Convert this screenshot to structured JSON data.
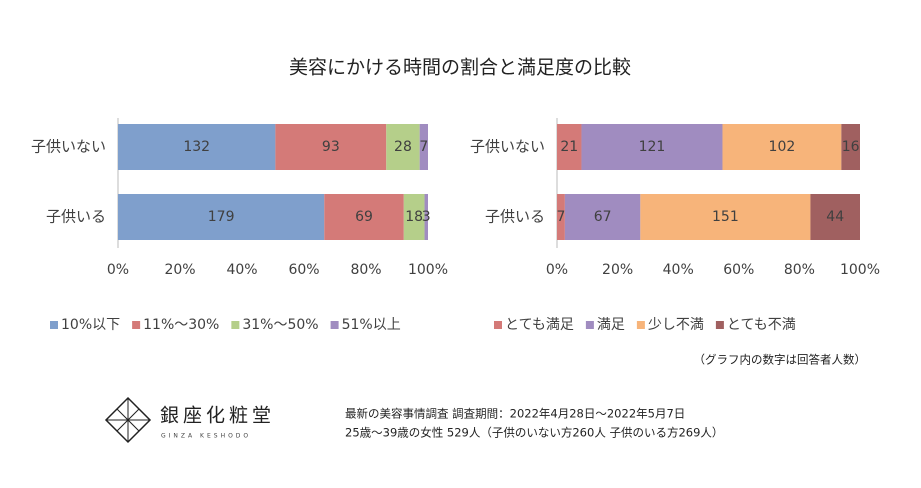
{
  "title": "美容にかける時間の割合と満足度の比較",
  "chart_data": [
    {
      "type": "bar",
      "orientation": "horizontal",
      "stacking": "percent",
      "categories": [
        "子供いない",
        "子供いる"
      ],
      "series": [
        {
          "name": "10%以下",
          "color": "#7f9fcc",
          "values": [
            132,
            179
          ]
        },
        {
          "name": "11%～30%",
          "color": "#d47a78",
          "values": [
            93,
            69
          ]
        },
        {
          "name": "31%～50%",
          "color": "#b5cf8a",
          "values": [
            28,
            18
          ]
        },
        {
          "name": "51%以上",
          "color": "#a08cc0",
          "values": [
            7,
            3
          ]
        }
      ],
      "xlim": [
        0,
        100
      ],
      "xticks": [
        {
          "value": 0,
          "label": "0%"
        },
        {
          "value": 20,
          "label": "20%"
        },
        {
          "value": 40,
          "label": "40%"
        },
        {
          "value": 60,
          "label": "60%"
        },
        {
          "value": 80,
          "label": "80%"
        },
        {
          "value": 100,
          "label": "100%"
        }
      ],
      "grid": false,
      "legend": "bottom"
    },
    {
      "type": "bar",
      "orientation": "horizontal",
      "stacking": "percent",
      "categories": [
        "子供いない",
        "子供いる"
      ],
      "series": [
        {
          "name": "とても満足",
          "color": "#d47a78",
          "values": [
            21,
            7
          ]
        },
        {
          "name": "満足",
          "color": "#a08cc0",
          "values": [
            121,
            67
          ]
        },
        {
          "name": "少し不満",
          "color": "#f7b47a",
          "values": [
            102,
            151
          ]
        },
        {
          "name": "とても不満",
          "color": "#a06060",
          "values": [
            16,
            44
          ]
        }
      ],
      "xlim": [
        0,
        100
      ],
      "xticks": [
        {
          "value": 0,
          "label": "0%"
        },
        {
          "value": 20,
          "label": "20%"
        },
        {
          "value": 40,
          "label": "40%"
        },
        {
          "value": 60,
          "label": "60%"
        },
        {
          "value": 80,
          "label": "80%"
        },
        {
          "value": 100,
          "label": "100%"
        }
      ],
      "grid": false,
      "legend": "bottom"
    }
  ],
  "note": "（グラフ内の数字は回答者人数）",
  "logo": {
    "name": "銀座化粧堂",
    "sub": "GINZA KESHODO"
  },
  "footer": [
    "最新の美容事情調査 調査期間：2022年4月28日～2022年5月7日",
    "25歳～39歳の女性 529人（子供のいない方260人 子供のいる方269人）"
  ]
}
